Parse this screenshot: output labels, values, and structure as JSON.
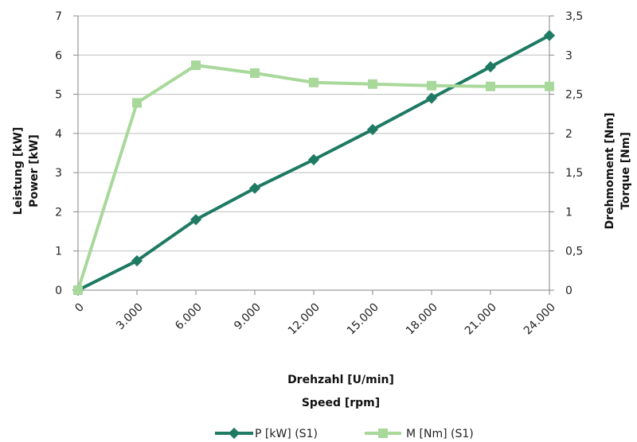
{
  "chart_data": {
    "type": "line",
    "x": [
      0,
      3000,
      6000,
      9000,
      12000,
      15000,
      18000,
      21000,
      24000
    ],
    "x_tick_labels": [
      "0",
      "3.000",
      "6.000",
      "9.000",
      "12.000",
      "15.000",
      "18.000",
      "21.000",
      "24.000"
    ],
    "xlabel": [
      "Drehzahl [U/min]",
      "Speed [rpm]"
    ],
    "ylabel_left": [
      "Leistung [kW]",
      "Power [kW]"
    ],
    "ylabel_right": [
      "Drehmoment [Nm]",
      "Torque [Nm]"
    ],
    "ylim_left": [
      0,
      7
    ],
    "ylim_right": [
      0,
      3.5
    ],
    "y_left_tick_labels": [
      "0",
      "1",
      "2",
      "3",
      "4",
      "5",
      "6",
      "7"
    ],
    "y_right_tick_labels": [
      "0",
      "0,5",
      "1",
      "1,5",
      "2",
      "2,5",
      "3",
      "3,5"
    ],
    "grid": "horizontal",
    "legend_position": "bottom",
    "series": [
      {
        "name": "P [kW] (S1)",
        "axis": "left",
        "marker": "diamond",
        "color": "#1e7a63",
        "values": [
          0,
          0.75,
          1.8,
          2.6,
          3.33,
          4.1,
          4.9,
          5.7,
          6.5
        ]
      },
      {
        "name": "M [Nm] (S1)",
        "axis": "right",
        "marker": "square",
        "color": "#a8d89a",
        "values": [
          0,
          2.39,
          2.87,
          2.77,
          2.65,
          2.63,
          2.61,
          2.6,
          2.6
        ]
      }
    ]
  }
}
